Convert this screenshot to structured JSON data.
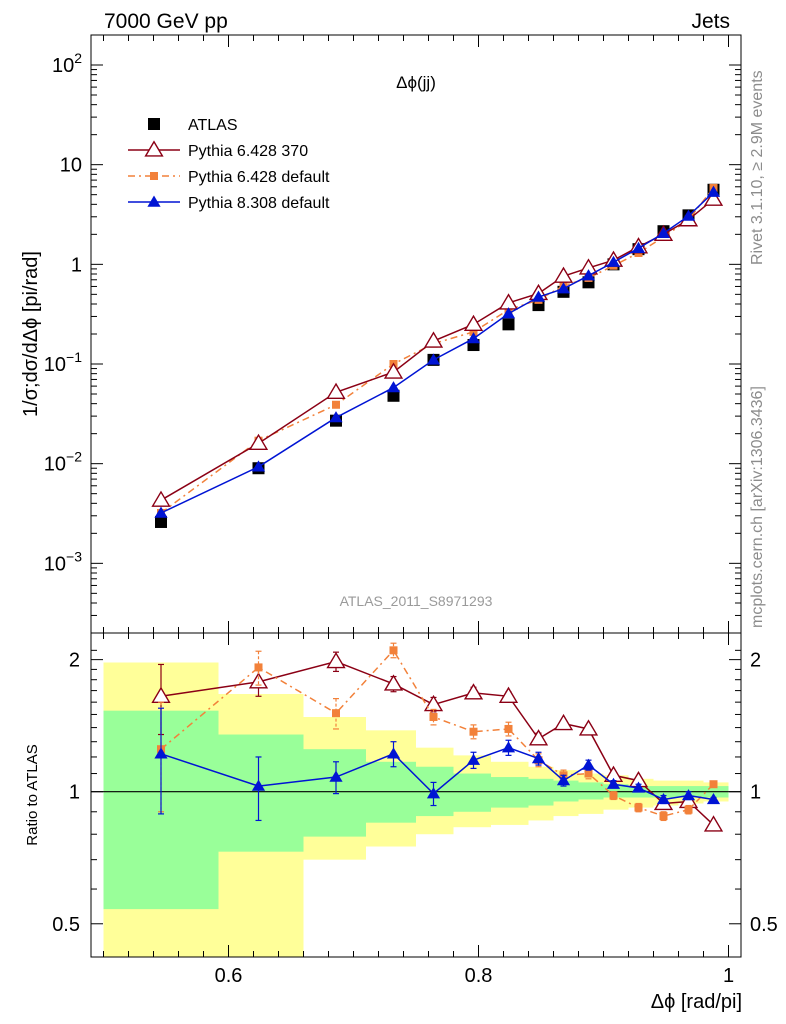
{
  "header": {
    "left_label": "7000 GeV pp",
    "right_label": "Jets"
  },
  "side_labels": {
    "rivet": "Rivet 3.1.10, ≥ 2.9M events",
    "mcplots": "mcplots.cern.ch [arXiv:1306.3436]"
  },
  "chart_data": [
    {
      "type": "line",
      "title": "Δϕ(jj)",
      "ylabel": "1/σ;dσ/dΔϕ [pi/rad]",
      "yscale": "log",
      "ylim": [
        0.0002,
        200
      ],
      "xlim": [
        0.49,
        1.01
      ],
      "yticks": [
        {
          "value": 0.001,
          "base": "10",
          "exp": "−3"
        },
        {
          "value": 0.01,
          "base": "10",
          "exp": "−2"
        },
        {
          "value": 0.1,
          "base": "10",
          "exp": "−1"
        },
        {
          "value": 1,
          "base": "1",
          "exp": ""
        },
        {
          "value": 10,
          "base": "10",
          "exp": ""
        },
        {
          "value": 100,
          "base": "10",
          "exp": "2"
        }
      ],
      "watermark": "ATLAS_2011_S8971293",
      "legend_position": "top-left",
      "x": [
        0.546,
        0.624,
        0.686,
        0.732,
        0.764,
        0.796,
        0.824,
        0.848,
        0.868,
        0.888,
        0.908,
        0.928,
        0.948,
        0.968,
        0.988
      ],
      "series": [
        {
          "name": "ATLAS",
          "color": "#000000",
          "marker": "square",
          "values": [
            0.0026,
            0.009,
            0.027,
            0.048,
            0.11,
            0.155,
            0.25,
            0.39,
            0.53,
            0.66,
            1.0,
            1.42,
            2.15,
            3.1,
            5.6
          ]
        },
        {
          "name": "Pythia 6.428 370",
          "color": "#8b0015",
          "marker": "open-triangle",
          "values": [
            0.0043,
            0.016,
            0.052,
            0.083,
            0.17,
            0.25,
            0.41,
            0.51,
            0.76,
            0.92,
            1.1,
            1.5,
            2.0,
            2.8,
            4.5
          ]
        },
        {
          "name": "Pythia 6.428 default",
          "color": "#f2813a",
          "marker": "square",
          "values": [
            0.0032,
            0.017,
            0.039,
            0.1,
            0.16,
            0.21,
            0.35,
            0.44,
            0.61,
            0.73,
            0.97,
            1.3,
            1.88,
            2.8,
            5.85
          ]
        },
        {
          "name": "Pythia 8.308 default",
          "color": "#0014d4",
          "marker": "triangle",
          "values": [
            0.0032,
            0.0093,
            0.029,
            0.058,
            0.11,
            0.18,
            0.32,
            0.47,
            0.57,
            0.77,
            1.05,
            1.45,
            2.05,
            3.05,
            5.3
          ]
        }
      ]
    },
    {
      "type": "line",
      "ylabel": "Ratio to ATLAS",
      "xlabel": "Δϕ [rad/pi]",
      "yscale": "log",
      "ylim": [
        0.42,
        2.3
      ],
      "xlim": [
        0.49,
        1.01
      ],
      "xticks": [
        {
          "value": 0.6,
          "label": "0.6"
        },
        {
          "value": 0.8,
          "label": "0.8"
        },
        {
          "value": 1.0,
          "label": "1"
        }
      ],
      "yticks": [
        {
          "value": 0.5,
          "label": "0.5"
        },
        {
          "value": 1,
          "label": "1"
        },
        {
          "value": 2,
          "label": "2"
        }
      ],
      "bands": {
        "edges": [
          0.5,
          0.592,
          0.66,
          0.71,
          0.75,
          0.78,
          0.81,
          0.84,
          0.86,
          0.88,
          0.9,
          0.92,
          0.94,
          0.96,
          0.98,
          1.0
        ],
        "inner_low": [
          0.54,
          0.73,
          0.79,
          0.85,
          0.88,
          0.9,
          0.92,
          0.93,
          0.95,
          0.96,
          0.97,
          0.97,
          0.97,
          0.97,
          0.97
        ],
        "inner_high": [
          1.53,
          1.35,
          1.25,
          1.17,
          1.14,
          1.1,
          1.08,
          1.07,
          1.06,
          1.05,
          1.04,
          1.03,
          1.03,
          1.03,
          1.03
        ],
        "outer_low": [
          0.42,
          0.42,
          0.7,
          0.75,
          0.8,
          0.83,
          0.84,
          0.86,
          0.88,
          0.89,
          0.91,
          0.92,
          0.93,
          0.94,
          0.95
        ],
        "outer_high": [
          1.97,
          1.67,
          1.48,
          1.38,
          1.26,
          1.21,
          1.17,
          1.14,
          1.12,
          1.1,
          1.09,
          1.07,
          1.06,
          1.06,
          1.05
        ]
      },
      "x": [
        0.546,
        0.624,
        0.686,
        0.732,
        0.764,
        0.796,
        0.824,
        0.848,
        0.868,
        0.888,
        0.908,
        0.928,
        0.948,
        0.968,
        0.988
      ],
      "series": [
        {
          "name": "Pythia 6.428 370",
          "color": "#8b0015",
          "marker": "open-triangle",
          "values": [
            1.65,
            1.78,
            1.98,
            1.76,
            1.58,
            1.68,
            1.65,
            1.32,
            1.43,
            1.39,
            1.09,
            1.06,
            0.94,
            0.95,
            0.84
          ],
          "errors": [
            0.3,
            0.13,
            0.1,
            0.07,
            0.06,
            0.05,
            0.04,
            0.04,
            0.03,
            0.03,
            0.02,
            0.02,
            0.02,
            0.02,
            0.01
          ]
        },
        {
          "name": "Pythia 6.428 default",
          "color": "#f2813a",
          "marker": "square",
          "values": [
            1.25,
            1.92,
            1.51,
            2.1,
            1.48,
            1.37,
            1.39,
            1.18,
            1.09,
            1.1,
            0.98,
            0.92,
            0.88,
            0.91,
            1.04
          ],
          "errors": [
            0.35,
            0.17,
            0.12,
            0.08,
            0.06,
            0.05,
            0.05,
            0.04,
            0.03,
            0.03,
            0.02,
            0.02,
            0.02,
            0.02,
            0.01
          ]
        },
        {
          "name": "Pythia 8.308 default",
          "color": "#0014d4",
          "marker": "triangle",
          "values": [
            1.22,
            1.03,
            1.08,
            1.22,
            0.99,
            1.18,
            1.26,
            1.19,
            1.06,
            1.15,
            1.04,
            1.02,
            0.96,
            0.98,
            0.96
          ],
          "errors": [
            0.33,
            0.17,
            0.09,
            0.08,
            0.06,
            0.05,
            0.05,
            0.04,
            0.03,
            0.03,
            0.02,
            0.02,
            0.02,
            0.02,
            0.01
          ]
        }
      ]
    }
  ]
}
